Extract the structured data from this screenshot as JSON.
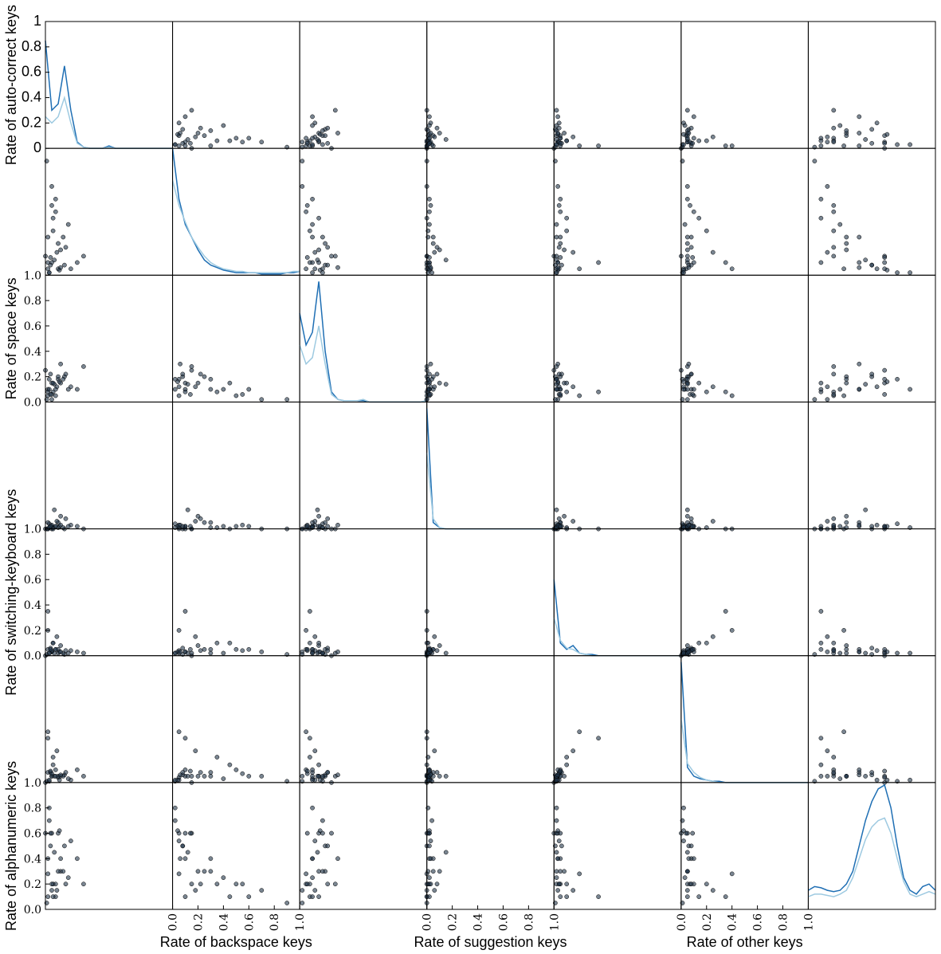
{
  "chart_data": {
    "type": "scatter_matrix",
    "xlim": [
      0,
      1
    ],
    "ylim": [
      0,
      1
    ],
    "ylabels": [
      "Rate of auto-correct keys",
      null,
      "Rate of space keys",
      null,
      "Rate of switching-keyboard keys",
      null,
      "Rate of alphanumeric keys"
    ],
    "xlabels": [
      null,
      "Rate of backspace keys",
      null,
      "Rate of suggestion keys",
      null,
      "Rate of other keys",
      null
    ],
    "yticks": [
      [
        0,
        0.2,
        0.4,
        0.6,
        0.8,
        1
      ],
      null,
      [
        {
          "value": 0,
          "label": "0.0"
        },
        0.2,
        0.4,
        0.6,
        0.8,
        {
          "value": 1,
          "label": "1.0"
        }
      ],
      null,
      [
        {
          "value": 0,
          "label": "0.0"
        },
        0.2,
        0.4,
        0.6,
        0.8,
        {
          "value": 1,
          "label": "1.0"
        }
      ],
      null,
      [
        {
          "value": 0,
          "label": "0.0"
        },
        0.2,
        0.4,
        0.6,
        0.8,
        {
          "value": 1,
          "label": "1.0"
        }
      ]
    ],
    "xticks": [
      null,
      [
        {
          "value": 0,
          "label": "0.0"
        },
        0.2,
        0.4,
        0.6,
        0.8,
        {
          "value": 1,
          "label": "1.0"
        }
      ],
      null,
      [
        {
          "value": 0,
          "label": "0.0"
        },
        0.2,
        0.4,
        0.6,
        0.8,
        {
          "value": 1,
          "label": "1.0"
        }
      ],
      null,
      [
        {
          "value": 0,
          "label": "0.0"
        },
        0.2,
        0.4,
        0.6,
        0.8,
        {
          "value": 1,
          "label": "1.0"
        }
      ],
      null
    ],
    "point_color": "#1f3447",
    "density_colors": [
      "#1f6fb4",
      "#9ecae1"
    ],
    "observations": [
      [
        0.05,
        0.1,
        0.15,
        0.02,
        0.03,
        0.05,
        0.6
      ],
      [
        0.1,
        0.05,
        0.18,
        0.01,
        0.02,
        0.04,
        0.6
      ],
      [
        0.02,
        0.3,
        0.1,
        0.05,
        0.05,
        0.08,
        0.4
      ],
      [
        0.15,
        0.08,
        0.2,
        0.0,
        0.01,
        0.06,
        0.5
      ],
      [
        0.08,
        0.5,
        0.05,
        0.02,
        0.05,
        0.1,
        0.2
      ],
      [
        0.2,
        0.05,
        0.12,
        0.03,
        0.04,
        0.02,
        0.54
      ],
      [
        0.0,
        0.15,
        0.25,
        0.0,
        0.0,
        0.0,
        0.6
      ],
      [
        0.05,
        0.7,
        0.02,
        0.0,
        0.03,
        0.05,
        0.15
      ],
      [
        0.12,
        0.2,
        0.15,
        0.1,
        0.08,
        0.05,
        0.3
      ],
      [
        0.03,
        0.02,
        0.18,
        0.04,
        0.02,
        0.01,
        0.7
      ],
      [
        0.25,
        0.1,
        0.1,
        0.02,
        0.03,
        0.1,
        0.4
      ],
      [
        0.06,
        0.35,
        0.08,
        0.01,
        0.1,
        0.2,
        0.2
      ],
      [
        0.02,
        0.05,
        0.05,
        0.0,
        0.2,
        0.4,
        0.28
      ],
      [
        0.1,
        0.25,
        0.2,
        0.05,
        0.05,
        0.05,
        0.3
      ],
      [
        0.07,
        0.12,
        0.14,
        0.15,
        0.02,
        0.05,
        0.45
      ],
      [
        0.18,
        0.4,
        0.1,
        0.02,
        0.02,
        0.03,
        0.25
      ],
      [
        0.04,
        0.08,
        0.22,
        0.02,
        0.06,
        0.08,
        0.5
      ],
      [
        0.3,
        0.15,
        0.28,
        0.0,
        0.02,
        0.05,
        0.2
      ],
      [
        0.01,
        0.9,
        0.02,
        0.0,
        0.01,
        0.01,
        0.05
      ],
      [
        0.09,
        0.18,
        0.12,
        0.06,
        0.15,
        0.25,
        0.15
      ],
      [
        0.11,
        0.04,
        0.16,
        0.02,
        0.03,
        0.02,
        0.62
      ],
      [
        0.05,
        0.55,
        0.06,
        0.03,
        0.04,
        0.07,
        0.2
      ],
      [
        0.14,
        0.3,
        0.18,
        0.01,
        0.02,
        0.05,
        0.3
      ],
      [
        0.02,
        0.1,
        0.08,
        0.0,
        0.35,
        0.35,
        0.1
      ],
      [
        0.08,
        0.6,
        0.1,
        0.02,
        0.05,
        0.05,
        0.1
      ],
      [
        0.03,
        0.02,
        0.1,
        0.01,
        0.02,
        0.02,
        0.8
      ],
      [
        0.16,
        0.22,
        0.22,
        0.08,
        0.04,
        0.08,
        0.2
      ],
      [
        0.06,
        0.45,
        0.15,
        0.0,
        0.1,
        0.14,
        0.1
      ],
      [
        0.12,
        0.06,
        0.3,
        0.03,
        0.03,
        0.06,
        0.4
      ],
      [
        0.04,
        0.14,
        0.06,
        0.02,
        0.05,
        0.09,
        0.6
      ]
    ],
    "density_x": [
      0,
      0.05,
      0.1,
      0.15,
      0.2,
      0.25,
      0.3,
      0.35,
      0.4,
      0.45,
      0.5,
      0.55,
      0.6,
      0.65,
      0.7,
      0.75,
      0.8,
      0.85,
      0.9,
      0.95,
      1
    ],
    "density": [
      [
        [
          0.85,
          0.3,
          0.35,
          0.65,
          0.3,
          0.05,
          0.01,
          0,
          0,
          0,
          0.02,
          0,
          0,
          0,
          0,
          0,
          0,
          0,
          0,
          0,
          0
        ],
        [
          0.25,
          0.2,
          0.25,
          0.4,
          0.2,
          0.04,
          0.01,
          0,
          0,
          0,
          0.01,
          0,
          0,
          0,
          0,
          0,
          0,
          0,
          0,
          0,
          0
        ]
      ],
      [
        [
          1.0,
          0.6,
          0.4,
          0.3,
          0.2,
          0.12,
          0.08,
          0.06,
          0.04,
          0.03,
          0.02,
          0.02,
          0.02,
          0.02,
          0.01,
          0.01,
          0.01,
          0.01,
          0.02,
          0.02,
          0.03
        ],
        [
          0.75,
          0.55,
          0.42,
          0.3,
          0.22,
          0.15,
          0.1,
          0.07,
          0.05,
          0.04,
          0.03,
          0.03,
          0.02,
          0.02,
          0.02,
          0.02,
          0.02,
          0.02,
          0.02,
          0.03,
          0.03
        ]
      ],
      [
        [
          0.7,
          0.45,
          0.55,
          0.95,
          0.4,
          0.08,
          0.02,
          0.01,
          0.01,
          0.01,
          0.01,
          0,
          0,
          0,
          0,
          0,
          0,
          0,
          0,
          0,
          0.01
        ],
        [
          0.45,
          0.3,
          0.35,
          0.6,
          0.3,
          0.06,
          0.02,
          0.01,
          0.01,
          0.01,
          0.02,
          0,
          0,
          0,
          0,
          0,
          0,
          0,
          0,
          0,
          0.01
        ]
      ],
      [
        [
          0.95,
          0.05,
          0.01,
          0,
          0,
          0,
          0,
          0,
          0,
          0,
          0,
          0,
          0,
          0,
          0,
          0,
          0,
          0,
          0,
          0,
          0
        ],
        [
          0.6,
          0.08,
          0.01,
          0,
          0,
          0,
          0,
          0,
          0,
          0,
          0,
          0,
          0,
          0,
          0,
          0,
          0,
          0,
          0,
          0,
          0
        ]
      ],
      [
        [
          0.6,
          0.1,
          0.05,
          0.08,
          0.02,
          0.01,
          0.01,
          0,
          0,
          0,
          0,
          0,
          0,
          0,
          0,
          0,
          0,
          0,
          0,
          0,
          0
        ],
        [
          0.3,
          0.12,
          0.06,
          0.05,
          0.02,
          0.01,
          0,
          0,
          0,
          0,
          0,
          0,
          0,
          0,
          0,
          0,
          0,
          0,
          0,
          0,
          0
        ]
      ],
      [
        [
          0.95,
          0.12,
          0.05,
          0.03,
          0.02,
          0.01,
          0.01,
          0,
          0,
          0,
          0,
          0,
          0,
          0,
          0,
          0,
          0,
          0,
          0,
          0,
          0
        ],
        [
          0.5,
          0.15,
          0.08,
          0.04,
          0.02,
          0.01,
          0,
          0,
          0,
          0,
          0,
          0,
          0,
          0,
          0,
          0,
          0,
          0,
          0,
          0,
          0
        ]
      ],
      [
        [
          0.15,
          0.18,
          0.17,
          0.15,
          0.14,
          0.15,
          0.2,
          0.3,
          0.5,
          0.7,
          0.85,
          0.95,
          0.98,
          0.8,
          0.5,
          0.25,
          0.15,
          0.12,
          0.18,
          0.2,
          0.15
        ],
        [
          0.1,
          0.12,
          0.12,
          0.11,
          0.1,
          0.12,
          0.15,
          0.25,
          0.4,
          0.55,
          0.65,
          0.7,
          0.72,
          0.6,
          0.4,
          0.22,
          0.12,
          0.1,
          0.12,
          0.14,
          0.12
        ]
      ]
    ]
  }
}
